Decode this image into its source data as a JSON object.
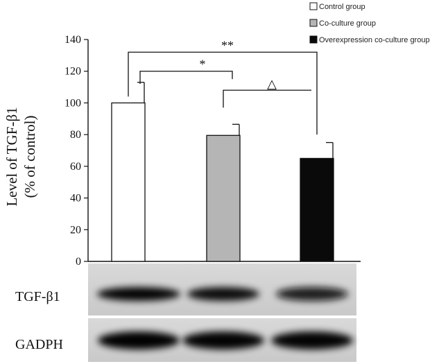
{
  "chart_data": {
    "type": "bar",
    "categories": [
      "Control group",
      "Co-culture group",
      "Overexpression co-culture group"
    ],
    "series": [
      {
        "values": [
          100,
          79.5,
          65
        ],
        "errors": [
          13,
          7,
          10
        ],
        "colors": [
          "#ffffff",
          "#b5b5b5",
          "#0a0a0a"
        ]
      }
    ],
    "title": "",
    "xlabel": "",
    "ylabel_line1": "Level of  TGF-β1",
    "ylabel_line2": "(% of control)",
    "ylim": [
      0,
      140
    ],
    "yticks": [
      0,
      20,
      40,
      60,
      80,
      100,
      120,
      140
    ],
    "grid": false,
    "legend": {
      "placement": "top-right",
      "entries": [
        {
          "label": "Control group",
          "color": "#ffffff"
        },
        {
          "label": "Co-culture group",
          "color": "#b5b5b5"
        },
        {
          "label": "Overexpression co-culture group",
          "color": "#0a0a0a"
        }
      ]
    },
    "significance": [
      {
        "from": 0,
        "to": 2,
        "marker": "**",
        "y": 132
      },
      {
        "from": 0,
        "to": 1,
        "marker": "*",
        "y": 120
      },
      {
        "from": 1,
        "to": 2,
        "marker": "△",
        "y": 108
      }
    ],
    "blots": [
      {
        "label": "TGF-β1",
        "intensities": [
          0.95,
          0.85,
          0.8
        ]
      },
      {
        "label": "GADPH",
        "intensities": [
          0.97,
          0.95,
          0.95
        ]
      }
    ]
  }
}
